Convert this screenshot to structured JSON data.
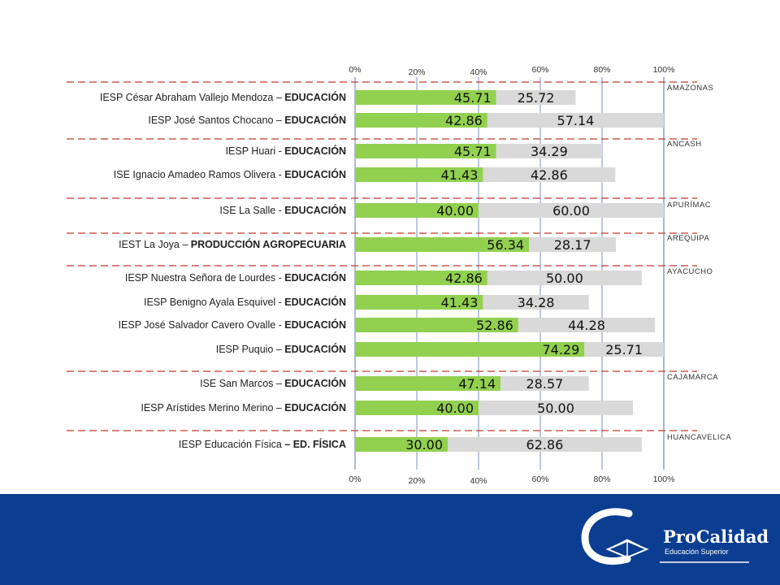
{
  "chart_data": {
    "type": "bar",
    "orientation": "horizontal",
    "stacked": true,
    "xlim": [
      0,
      100
    ],
    "x_ticks_top": [
      "0%",
      "20%",
      "40%",
      "60%",
      "80%",
      "100%"
    ],
    "x_ticks_bottom": [
      "0%",
      "20%",
      "40%",
      "60%",
      "80%",
      "100%"
    ],
    "grid": true,
    "series_colors": [
      "#92d050",
      "#d9d9d9"
    ],
    "groups": [
      {
        "region": "AMAZONAS",
        "rows": [
          {
            "label_prefix": "IESP César Abraham Vallejo Mendoza – ",
            "label_bold": "EDUCACIÓN",
            "values": [
              45.71,
              25.72
            ],
            "value_labels": [
              "45.71",
              "25.72"
            ]
          },
          {
            "label_prefix": "IESP José Santos Chocano – ",
            "label_bold": "EDUCACIÓN",
            "values": [
              42.86,
              57.14
            ],
            "value_labels": [
              "42.86",
              "57.14"
            ]
          }
        ]
      },
      {
        "region": "ANCASH",
        "rows": [
          {
            "label_prefix": "IESP Huari - ",
            "label_bold": "EDUCACIÓN",
            "values": [
              45.71,
              34.29
            ],
            "value_labels": [
              "45.71",
              "34.29"
            ]
          },
          {
            "label_prefix": "ISE Ignacio Amadeo Ramos Olivera - ",
            "label_bold": "EDUCACIÓN",
            "values": [
              41.43,
              42.86
            ],
            "value_labels": [
              "41.43",
              "42.86"
            ]
          }
        ]
      },
      {
        "region": "APURÍMAC",
        "rows": [
          {
            "label_prefix": "ISE La Salle - ",
            "label_bold": "EDUCACIÓN",
            "values": [
              40.0,
              60.0
            ],
            "value_labels": [
              "40.00",
              "60.00"
            ]
          }
        ]
      },
      {
        "region": "AREQUIPA",
        "rows": [
          {
            "label_prefix": "IEST La Joya – ",
            "label_bold": "PRODUCCIÓN AGROPECUARIA",
            "values": [
              56.34,
              28.17
            ],
            "value_labels": [
              "56.34",
              "28.17"
            ]
          }
        ]
      },
      {
        "region": "AYACUCHO",
        "rows": [
          {
            "label_prefix": "IESP Nuestra Señora de Lourdes - ",
            "label_bold": "EDUCACIÓN",
            "values": [
              42.86,
              50.0
            ],
            "value_labels": [
              "42.86",
              "50.00"
            ]
          },
          {
            "label_prefix": "IESP Benigno Ayala Esquivel - ",
            "label_bold": "EDUCACIÓN",
            "values": [
              41.43,
              34.28
            ],
            "value_labels": [
              "41.43",
              "34.28"
            ]
          },
          {
            "label_prefix": "IESP José Salvador Cavero Ovalle - ",
            "label_bold": "EDUCACIÓN",
            "values": [
              52.86,
              44.28
            ],
            "value_labels": [
              "52.86",
              "44.28"
            ]
          },
          {
            "label_prefix": "IESP Puquio – ",
            "label_bold": "EDUCACIÓN",
            "values": [
              74.29,
              25.71
            ],
            "value_labels": [
              "74.29",
              "25.71"
            ]
          }
        ]
      },
      {
        "region": "CAJAMARCA",
        "rows": [
          {
            "label_prefix": "ISE San Marcos – ",
            "label_bold": "EDUCACIÓN",
            "values": [
              47.14,
              28.57
            ],
            "value_labels": [
              "47.14",
              "28.57"
            ]
          },
          {
            "label_prefix": "IESP Arístides Merino Merino – ",
            "label_bold": "EDUCACIÓN",
            "values": [
              40.0,
              50.0
            ],
            "value_labels": [
              "40.00",
              "50.00"
            ]
          }
        ]
      },
      {
        "region": "HUANCAVELICA",
        "rows": [
          {
            "label_prefix": "IESP Educación Física ",
            "label_bold": "– ED. FÍSICA",
            "values": [
              30.0,
              62.86
            ],
            "value_labels": [
              "30.00",
              "62.86"
            ]
          }
        ]
      }
    ]
  },
  "footer": {
    "background": "#0b3d91",
    "logo_name": "ProCalidad",
    "logo_subtitle": "Educación Superior"
  }
}
